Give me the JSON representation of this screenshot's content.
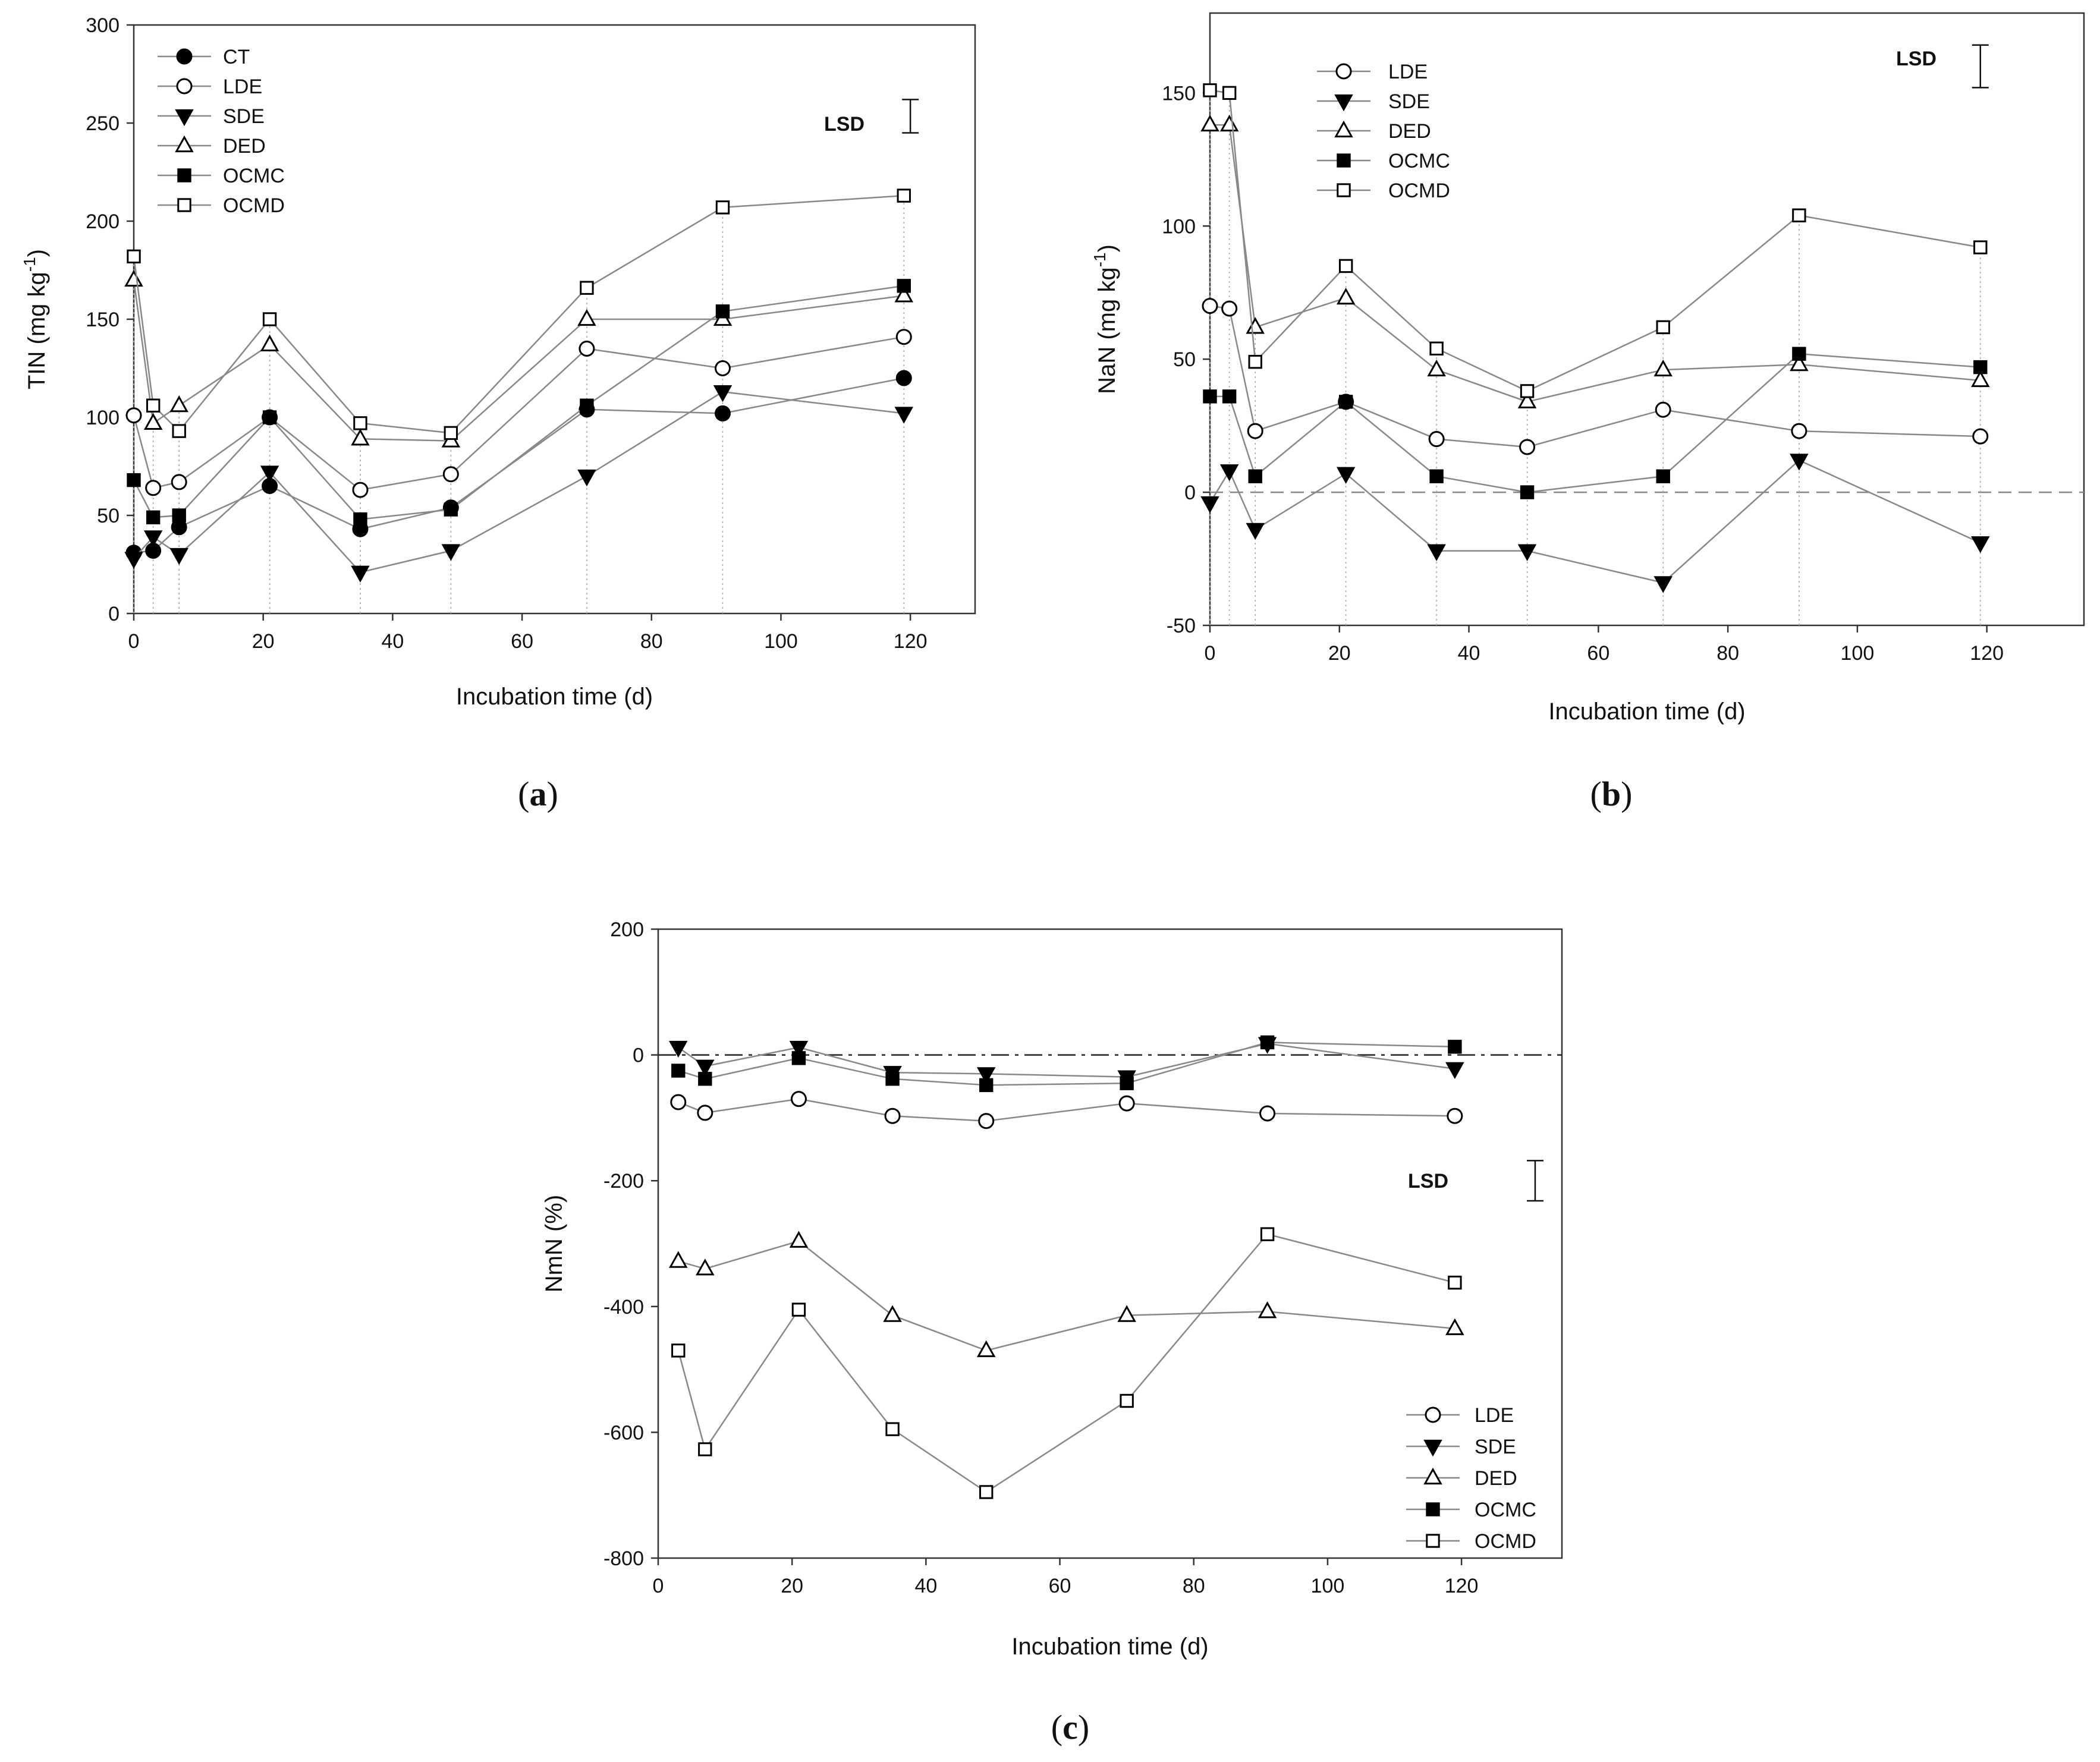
{
  "chart_data": [
    {
      "id": "a",
      "type": "line",
      "panel_label_open": "(",
      "panel_label_letter": "a",
      "panel_label_close": ")",
      "title": "",
      "xlabel": "Incubation time (d)",
      "ylabel_main": "TIN (mg kg",
      "ylabel_sup": "-1",
      "ylabel_tail": ")",
      "xlim": [
        0,
        130
      ],
      "ylim": [
        0,
        300
      ],
      "xticks": [
        0,
        20,
        40,
        60,
        80,
        100,
        120
      ],
      "yticks": [
        0,
        50,
        100,
        150,
        200,
        250,
        300
      ],
      "grid": false,
      "legend_position": "top-left",
      "lsd_label": "LSD",
      "lsd_value_range": [
        245,
        262
      ],
      "lsd_x": 120,
      "guide_x": [
        0,
        3,
        7,
        21,
        35,
        49,
        70,
        91,
        119
      ],
      "guide_style": "dotted-vertical",
      "series": [
        {
          "name": "CT",
          "marker": "circle-filled",
          "x": [
            0,
            3,
            7,
            21,
            35,
            49,
            70,
            91,
            119
          ],
          "values": [
            31,
            32,
            44,
            65,
            43,
            54,
            104,
            102,
            120
          ]
        },
        {
          "name": "LDE",
          "marker": "circle-open",
          "x": [
            0,
            3,
            7,
            21,
            35,
            49,
            70,
            91,
            119
          ],
          "values": [
            101,
            64,
            67,
            100,
            63,
            71,
            135,
            125,
            141
          ]
        },
        {
          "name": "SDE",
          "marker": "triangle-down-filled",
          "x": [
            0,
            3,
            7,
            21,
            35,
            49,
            70,
            91,
            119
          ],
          "values": [
            28,
            39,
            30,
            72,
            21,
            32,
            70,
            113,
            102
          ]
        },
        {
          "name": "DED",
          "marker": "triangle-up-open",
          "x": [
            0,
            3,
            7,
            21,
            35,
            49,
            70,
            91,
            119
          ],
          "values": [
            170,
            97,
            106,
            137,
            89,
            88,
            150,
            150,
            162
          ]
        },
        {
          "name": "OCMC",
          "marker": "square-filled",
          "x": [
            0,
            3,
            7,
            21,
            35,
            49,
            70,
            91,
            119
          ],
          "values": [
            68,
            49,
            50,
            100,
            48,
            53,
            106,
            154,
            167
          ]
        },
        {
          "name": "OCMD",
          "marker": "square-open",
          "x": [
            0,
            3,
            7,
            21,
            35,
            49,
            70,
            91,
            119
          ],
          "values": [
            182,
            106,
            93,
            150,
            97,
            92,
            166,
            207,
            213
          ]
        }
      ]
    },
    {
      "id": "b",
      "type": "line",
      "panel_label_open": "(",
      "panel_label_letter": "b",
      "panel_label_close": ")",
      "title": "",
      "xlabel": "Incubation time (d)",
      "ylabel_main": "NaN (mg kg",
      "ylabel_sup": "-1",
      "ylabel_tail": ")",
      "xlim": [
        0,
        135
      ],
      "ylim": [
        -50,
        180
      ],
      "xticks": [
        0,
        20,
        40,
        60,
        80,
        100,
        120
      ],
      "yticks": [
        -50,
        0,
        50,
        100,
        150
      ],
      "grid": false,
      "zero_line": "dashed",
      "legend_position": "top-left",
      "lsd_label": "LSD",
      "lsd_value_range": [
        152,
        168
      ],
      "lsd_x": 119,
      "guide_x": [
        0,
        3,
        7,
        21,
        35,
        49,
        70,
        91,
        119
      ],
      "guide_style": "dotted-vertical",
      "series": [
        {
          "name": "LDE",
          "marker": "circle-open",
          "x": [
            0,
            3,
            7,
            21,
            35,
            49,
            70,
            91,
            119
          ],
          "values": [
            70,
            69,
            23,
            34,
            20,
            17,
            31,
            23,
            21
          ]
        },
        {
          "name": "SDE",
          "marker": "triangle-down-filled",
          "x": [
            0,
            3,
            7,
            21,
            35,
            49,
            70,
            91,
            119
          ],
          "values": [
            -4,
            8,
            -14,
            7,
            -22,
            -22,
            -34,
            12,
            -19
          ]
        },
        {
          "name": "DED",
          "marker": "triangle-up-open",
          "x": [
            0,
            3,
            7,
            21,
            35,
            49,
            70,
            91,
            119
          ],
          "values": [
            138,
            138,
            62,
            73,
            46,
            34,
            46,
            48,
            42
          ]
        },
        {
          "name": "OCMC",
          "marker": "square-filled",
          "x": [
            0,
            3,
            7,
            21,
            35,
            49,
            70,
            91,
            119
          ],
          "values": [
            36,
            36,
            6,
            34,
            6,
            0,
            6,
            52,
            47
          ]
        },
        {
          "name": "OCMD",
          "marker": "square-open",
          "x": [
            0,
            3,
            7,
            21,
            35,
            49,
            70,
            91,
            119
          ],
          "values": [
            151,
            150,
            49,
            85,
            54,
            38,
            62,
            104,
            92
          ]
        }
      ]
    },
    {
      "id": "c",
      "type": "line",
      "panel_label_open": "(",
      "panel_label_letter": "c",
      "panel_label_close": ")",
      "title": "",
      "xlabel": "Incubation time (d)",
      "ylabel_main": "NmN (%)",
      "ylabel_sup": "",
      "ylabel_tail": "",
      "xlim": [
        0,
        135
      ],
      "ylim": [
        -800,
        200
      ],
      "xticks": [
        0,
        20,
        40,
        60,
        80,
        100,
        120
      ],
      "yticks": [
        -800,
        -600,
        -400,
        -200,
        0,
        200
      ],
      "grid": false,
      "zero_line": "dash-dot",
      "legend_position": "bottom-right",
      "lsd_label": "LSD",
      "lsd_value_range": [
        -232,
        -168
      ],
      "lsd_x": 131,
      "guide_x": [],
      "series": [
        {
          "name": "LDE",
          "marker": "circle-open",
          "x": [
            3,
            7,
            21,
            35,
            49,
            70,
            91,
            119
          ],
          "values": [
            -75,
            -92,
            -70,
            -97,
            -105,
            -77,
            -93,
            -97
          ]
        },
        {
          "name": "SDE",
          "marker": "triangle-down-filled",
          "x": [
            3,
            7,
            21,
            35,
            49,
            70,
            91,
            119
          ],
          "values": [
            12,
            -18,
            12,
            -28,
            -30,
            -35,
            18,
            -22
          ]
        },
        {
          "name": "DED",
          "marker": "triangle-up-open",
          "x": [
            3,
            7,
            21,
            35,
            49,
            70,
            91,
            119
          ],
          "values": [
            -328,
            -340,
            -296,
            -414,
            -470,
            -414,
            -408,
            -435
          ]
        },
        {
          "name": "OCMC",
          "marker": "square-filled",
          "x": [
            3,
            7,
            21,
            35,
            49,
            70,
            91,
            119
          ],
          "values": [
            -25,
            -38,
            -5,
            -38,
            -48,
            -45,
            20,
            13
          ]
        },
        {
          "name": "OCMD",
          "marker": "square-open",
          "x": [
            3,
            7,
            21,
            35,
            49,
            70,
            91,
            119
          ],
          "values": [
            -470,
            -627,
            -405,
            -595,
            -695,
            -550,
            -285,
            -362
          ]
        }
      ]
    }
  ]
}
